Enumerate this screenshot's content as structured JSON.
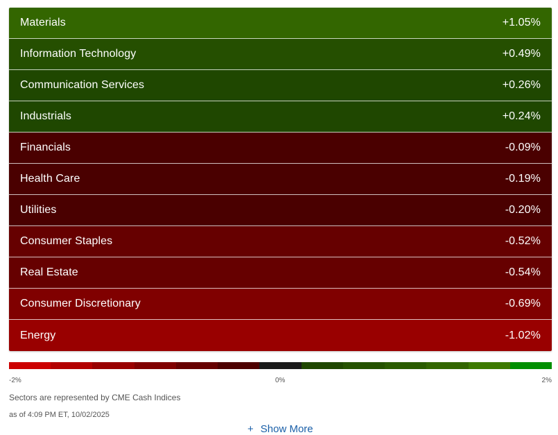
{
  "sectors": [
    {
      "name": "Materials",
      "change": "+1.05%",
      "color": "#336600"
    },
    {
      "name": "Information Technology",
      "change": "+0.49%",
      "color": "#254f00"
    },
    {
      "name": "Communication Services",
      "change": "+0.26%",
      "color": "#1f4700"
    },
    {
      "name": "Industrials",
      "change": "+0.24%",
      "color": "#1f4700"
    },
    {
      "name": "Financials",
      "change": "-0.09%",
      "color": "#4a0000"
    },
    {
      "name": "Health Care",
      "change": "-0.19%",
      "color": "#4a0000"
    },
    {
      "name": "Utilities",
      "change": "-0.20%",
      "color": "#4a0000"
    },
    {
      "name": "Consumer Staples",
      "change": "-0.52%",
      "color": "#660000"
    },
    {
      "name": "Real Estate",
      "change": "-0.54%",
      "color": "#660000"
    },
    {
      "name": "Consumer Discretionary",
      "change": "-0.69%",
      "color": "#800000"
    },
    {
      "name": "Energy",
      "change": "-1.02%",
      "color": "#990000"
    }
  ],
  "legend": {
    "min_label": "-2%",
    "mid_label": "0%",
    "max_label": "2%",
    "colors": [
      "#cc0000",
      "#b30000",
      "#990000",
      "#800000",
      "#660000",
      "#4d0000",
      "#1a1a1a",
      "#1f4700",
      "#255200",
      "#2b5c00",
      "#336600",
      "#3d7a00",
      "#008f00"
    ]
  },
  "footer": {
    "note": "Sectors are represented by CME Cash Indices",
    "as_of": "as of 4:09 PM ET, 10/02/2025",
    "show_more": "Show More",
    "show_more_icon": "plus-icon"
  }
}
